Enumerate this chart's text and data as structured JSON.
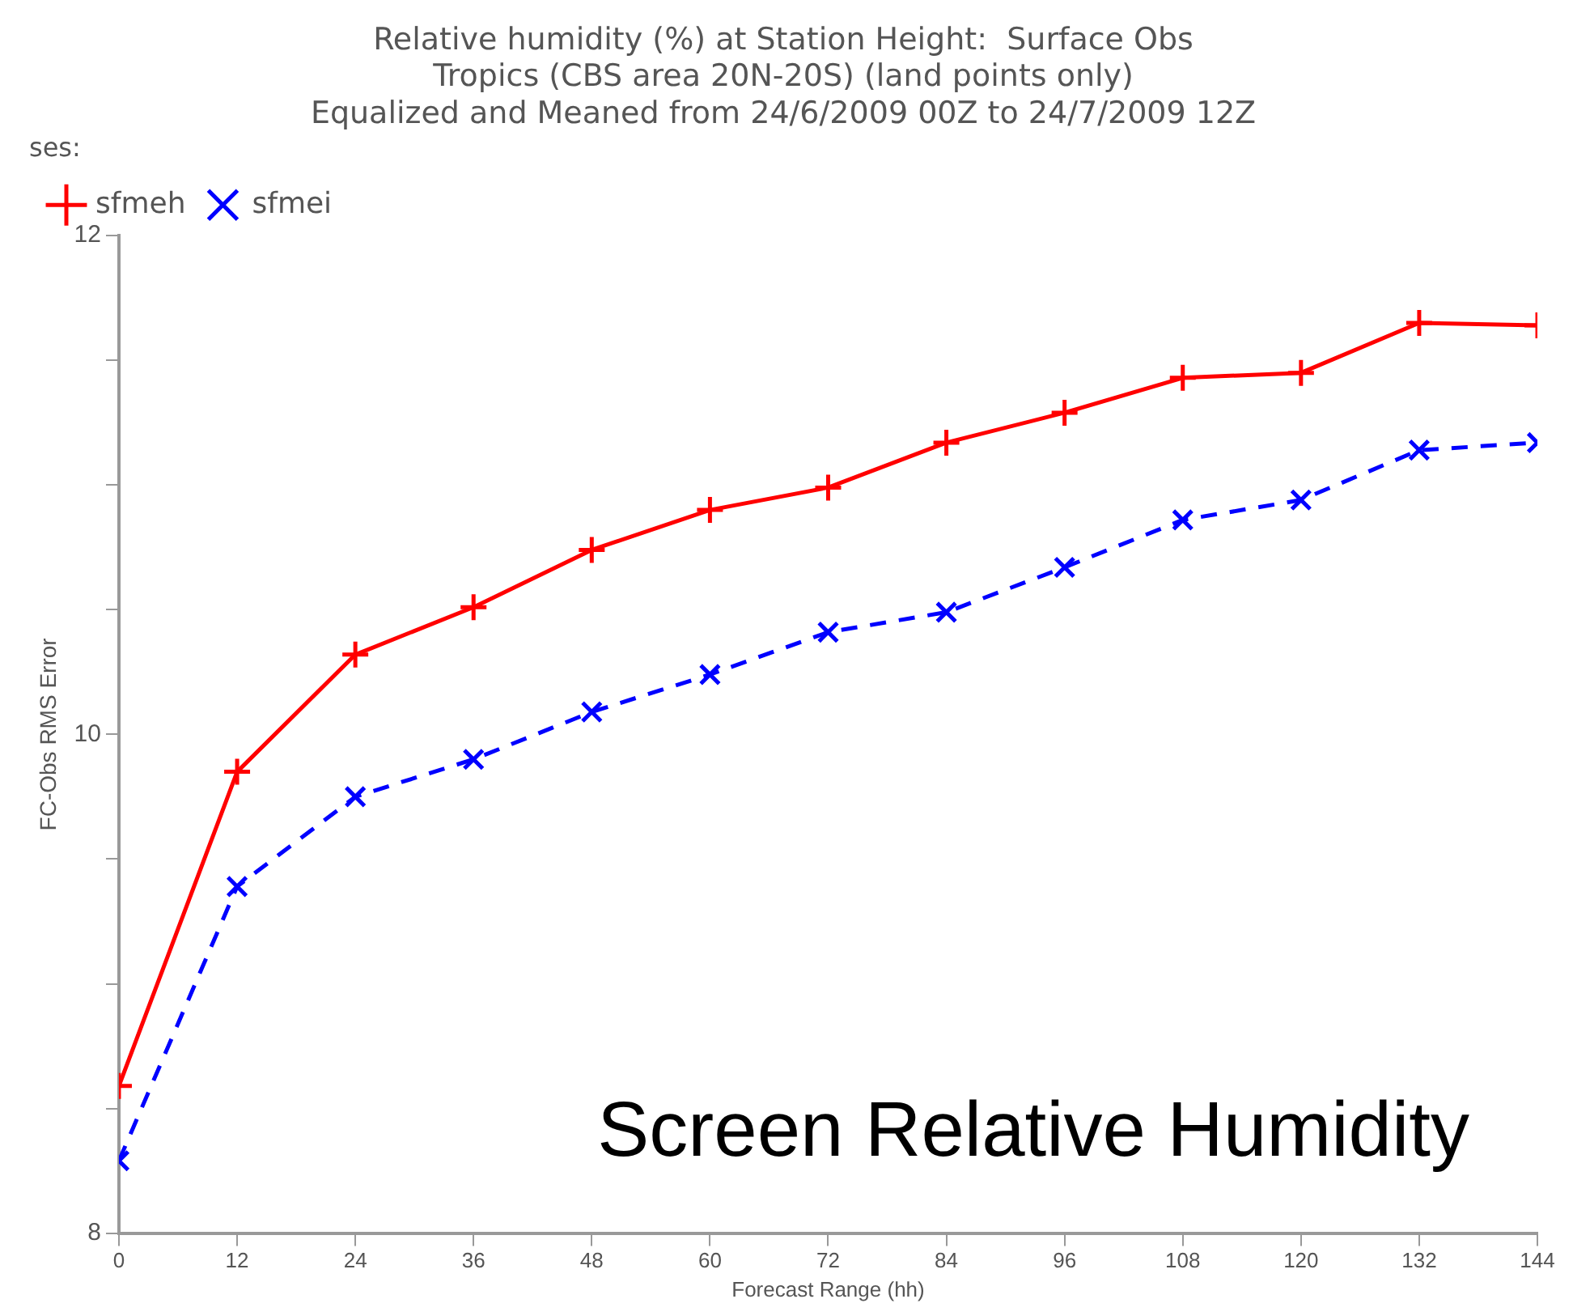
{
  "chart_data": {
    "type": "line",
    "title": "Relative humidity (%) at Station Height:  Surface Obs",
    "subtitle": "Tropics (CBS area 20N-20S) (land points only)\nEqualized and Meaned from 24/6/2009 00Z to 24/7/2009 12Z",
    "xlabel": "Forecast Range (hh)",
    "ylabel": "FC-Obs RMS Error",
    "legend_title": "ses:",
    "legend": "top left",
    "annotations": [
      "Screen Relative Humidity"
    ],
    "x": [
      0,
      12,
      24,
      36,
      48,
      60,
      72,
      84,
      96,
      108,
      120,
      132,
      144
    ],
    "xlim": [
      0,
      144
    ],
    "xticks": [
      0,
      12,
      24,
      36,
      48,
      60,
      72,
      84,
      96,
      108,
      120,
      132,
      144
    ],
    "ylim": [
      8,
      12
    ],
    "yticks": [
      8,
      {
        "value": 8.5,
        "label": null
      },
      {
        "value": 9,
        "label": null
      },
      {
        "value": 9.5,
        "label": null
      },
      10,
      {
        "value": 10.5,
        "label": null
      },
      {
        "value": 11,
        "label": null
      },
      {
        "value": 11.5,
        "label": null
      },
      12
    ],
    "grid": false,
    "marker": "cross",
    "series": [
      {
        "name": "sfmeh",
        "color": "#ff0000",
        "line_style": "solid",
        "values": [
          8.59,
          9.85,
          10.32,
          10.51,
          10.74,
          10.9,
          10.99,
          11.17,
          11.29,
          11.43,
          11.45,
          11.65,
          11.64
        ]
      },
      {
        "name": "sfmei",
        "color": "#0000ff",
        "line_style": "dashed",
        "values": [
          8.29,
          9.39,
          9.75,
          9.9,
          10.09,
          10.24,
          10.41,
          10.49,
          10.67,
          10.86,
          10.94,
          11.14,
          11.17
        ]
      }
    ]
  }
}
